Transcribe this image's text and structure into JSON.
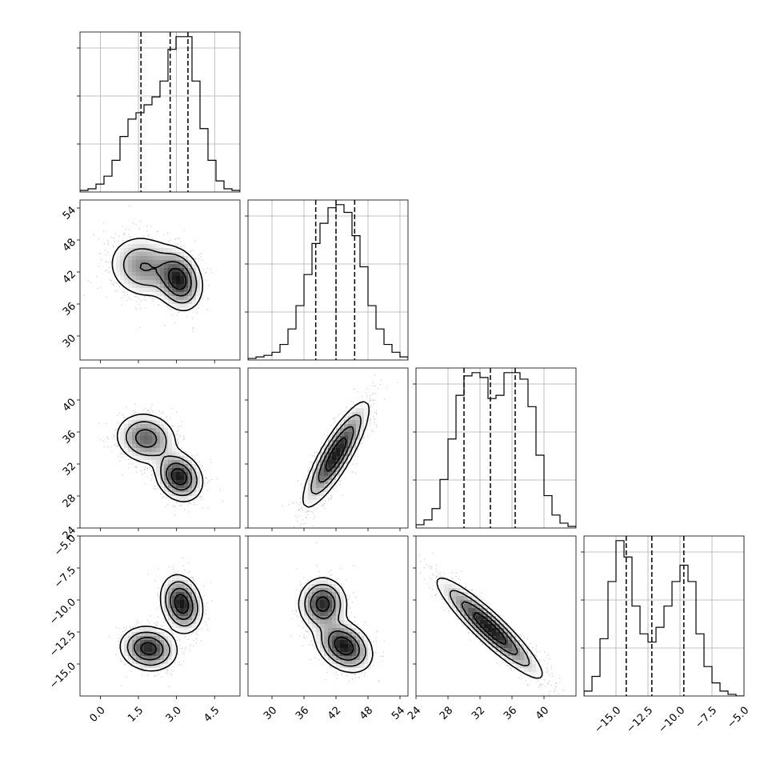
{
  "chart_data": {
    "type": "corner",
    "variables": [
      {
        "name": "p0",
        "range": [
          -0.8,
          5.5
        ],
        "ticks": [
          0.0,
          1.5,
          3.0,
          4.5
        ],
        "tick_labels": [
          "0.0",
          "1.5",
          "3.0",
          "4.5"
        ]
      },
      {
        "name": "p1",
        "range": [
          25.5,
          55.5
        ],
        "ticks": [
          30,
          36,
          42,
          48,
          54
        ],
        "tick_labels": [
          "30",
          "36",
          "42",
          "48",
          "54"
        ]
      },
      {
        "name": "p2",
        "range": [
          24,
          44
        ],
        "ticks": [
          24,
          28,
          32,
          36,
          40
        ],
        "tick_labels": [
          "24",
          "28",
          "32",
          "36",
          "40"
        ]
      },
      {
        "name": "p3",
        "range": [
          -17.5,
          -5.0
        ],
        "ticks": [
          -15.0,
          -12.5,
          -10.0,
          -7.5,
          -5.0
        ],
        "tick_labels": [
          "−15.0",
          "−12.5",
          "−10.0",
          "−7.5",
          "−5.0"
        ]
      }
    ],
    "histograms": [
      {
        "var": 0,
        "bins": 20,
        "counts": [
          1,
          2,
          5,
          10,
          20,
          35,
          46,
          50,
          55,
          60,
          70,
          90,
          98,
          98,
          70,
          40,
          20,
          7,
          2,
          1
        ],
        "quantiles": [
          1.6,
          2.75,
          3.45
        ]
      },
      {
        "var": 1,
        "bins": 20,
        "counts": [
          1,
          2,
          3,
          5,
          10,
          20,
          35,
          55,
          75,
          88,
          98,
          100,
          95,
          80,
          60,
          35,
          20,
          10,
          5,
          2
        ],
        "quantiles": [
          38.2,
          42.0,
          45.5
        ]
      },
      {
        "var": 2,
        "bins": 20,
        "counts": [
          2,
          5,
          12,
          30,
          55,
          82,
          94,
          96,
          93,
          80,
          82,
          96,
          96,
          92,
          75,
          45,
          20,
          8,
          3,
          1
        ],
        "quantiles": [
          30.0,
          33.3,
          36.4
        ]
      },
      {
        "var": 3,
        "bins": 20,
        "counts": [
          3,
          12,
          35,
          70,
          95,
          85,
          55,
          38,
          33,
          42,
          55,
          70,
          80,
          70,
          38,
          18,
          8,
          3,
          1,
          0
        ],
        "quantiles": [
          -14.2,
          -12.2,
          -9.7
        ]
      }
    ],
    "pairs": [
      {
        "x": 0,
        "y": 1,
        "components": [
          {
            "mean": [
              1.7,
              43.0
            ],
            "sd": [
              0.7,
              3.0
            ],
            "rho": -0.1,
            "w": 0.5
          },
          {
            "mean": [
              3.1,
              40.5
            ],
            "sd": [
              0.45,
              2.8
            ],
            "rho": -0.2,
            "w": 0.5
          }
        ]
      },
      {
        "x": 0,
        "y": 2,
        "components": [
          {
            "mean": [
              1.8,
              35.2
            ],
            "sd": [
              0.6,
              1.6
            ],
            "rho": -0.1,
            "w": 0.5
          },
          {
            "mean": [
              3.1,
              30.4
            ],
            "sd": [
              0.45,
              1.5
            ],
            "rho": -0.2,
            "w": 0.5
          }
        ]
      },
      {
        "x": 1,
        "y": 2,
        "components": [
          {
            "mean": [
              42.0,
              33.2
            ],
            "sd": [
              3.0,
              3.2
            ],
            "rho": 0.85,
            "w": 1.0
          }
        ]
      },
      {
        "x": 0,
        "y": 3,
        "components": [
          {
            "mean": [
              1.9,
              -13.8
            ],
            "sd": [
              0.55,
              0.85
            ],
            "rho": -0.1,
            "w": 0.5
          },
          {
            "mean": [
              3.2,
              -10.3
            ],
            "sd": [
              0.4,
              1.1
            ],
            "rho": -0.2,
            "w": 0.5
          }
        ]
      },
      {
        "x": 1,
        "y": 3,
        "components": [
          {
            "mean": [
              39.5,
              -10.3
            ],
            "sd": [
              2.2,
              1.0
            ],
            "rho": 0.0,
            "w": 0.45
          },
          {
            "mean": [
              43.5,
              -13.6
            ],
            "sd": [
              2.6,
              1.0
            ],
            "rho": -0.3,
            "w": 0.55
          }
        ]
      },
      {
        "x": 2,
        "y": 3,
        "components": [
          {
            "mean": [
              33.2,
              -12.2
            ],
            "sd": [
              3.2,
              1.9
            ],
            "rho": -0.92,
            "w": 1.0
          }
        ]
      }
    ],
    "contour_levels": 4,
    "grid": true
  }
}
